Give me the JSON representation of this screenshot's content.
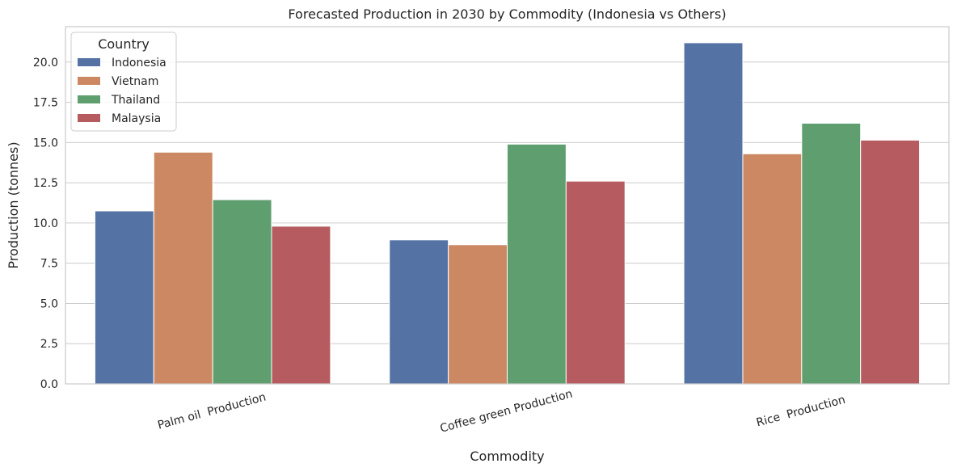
{
  "chart_data": {
    "type": "bar",
    "title": "Forecasted Production in 2030 by Commodity (Indonesia vs Others)",
    "xlabel": "Commodity",
    "ylabel": "Production (tonnes)",
    "categories": [
      "Palm oil  Production",
      "Coffee green Production",
      "Rice  Production"
    ],
    "series": [
      {
        "name": "Indonesia",
        "values": [
          10.75,
          8.95,
          21.2
        ],
        "color": "#5572a4"
      },
      {
        "name": "Vietnam",
        "values": [
          14.4,
          8.65,
          14.3
        ],
        "color": "#cc8862"
      },
      {
        "name": "Thailand",
        "values": [
          11.45,
          14.9,
          16.2
        ],
        "color": "#5f9e6e"
      },
      {
        "name": "Malaysia",
        "values": [
          9.8,
          12.6,
          15.15
        ],
        "color": "#b65c60"
      }
    ],
    "ylim": [
      0,
      22.2
    ],
    "yticks": [
      "0.0",
      "2.5",
      "5.0",
      "7.5",
      "10.0",
      "12.5",
      "15.0",
      "17.5",
      "20.0"
    ],
    "legend": {
      "title": "Country",
      "placement": "top-left"
    },
    "grid": true
  }
}
